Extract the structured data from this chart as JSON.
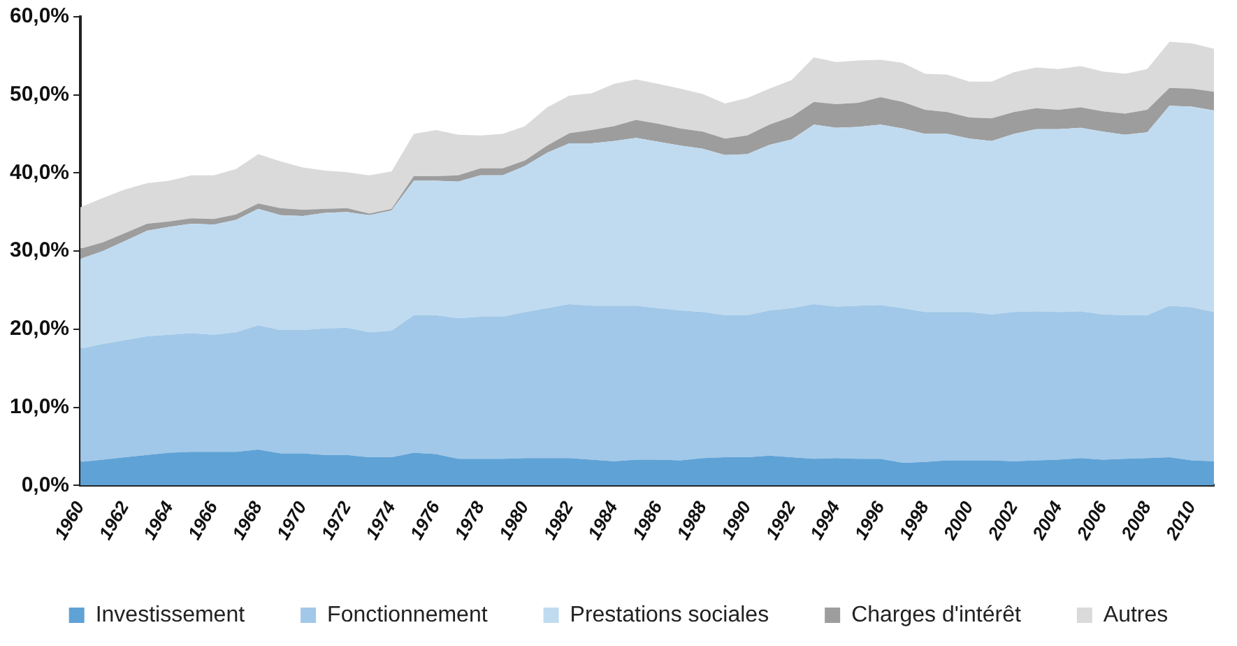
{
  "chart_data": {
    "type": "area",
    "stacked": true,
    "legend": "bottom",
    "grid": false,
    "categories": [
      "1960",
      null,
      "1962",
      null,
      "1964",
      null,
      "1966",
      null,
      "1968",
      null,
      "1970",
      null,
      "1972",
      null,
      "1974",
      null,
      "1976",
      null,
      "1978",
      null,
      "1980",
      null,
      "1982",
      null,
      "1984",
      null,
      "1986",
      null,
      "1988",
      null,
      "1990",
      null,
      "1992",
      null,
      "1994",
      null,
      "1996",
      null,
      "1998",
      null,
      "2000",
      null,
      "2002",
      null,
      "2004",
      null,
      "2006",
      null,
      "2008",
      null,
      "2010",
      null
    ],
    "ylim": [
      0,
      60
    ],
    "yticks": [
      {
        "value": 0,
        "label": "0,0%"
      },
      {
        "value": 10,
        "label": "10,0%"
      },
      {
        "value": 20,
        "label": "20,0%"
      },
      {
        "value": 30,
        "label": "30,0%"
      },
      {
        "value": 40,
        "label": "40,0%"
      },
      {
        "value": 50,
        "label": "50,0%"
      },
      {
        "value": 60,
        "label": "60,0%"
      }
    ],
    "series": [
      {
        "name": "Investissement",
        "color": "#5fa2d6",
        "values": [
          3.0,
          3.3,
          3.6,
          3.9,
          4.2,
          4.3,
          4.3,
          4.3,
          4.6,
          4.1,
          4.1,
          3.9,
          3.9,
          3.6,
          3.6,
          4.2,
          4.0,
          3.4,
          3.4,
          3.4,
          3.5,
          3.5,
          3.5,
          3.3,
          3.1,
          3.3,
          3.3,
          3.2,
          3.5,
          3.6,
          3.6,
          3.8,
          3.6,
          3.4,
          3.5,
          3.4,
          3.4,
          2.9,
          3.0,
          3.2,
          3.2,
          3.2,
          3.1,
          3.2,
          3.3,
          3.5,
          3.3,
          3.4,
          3.5,
          3.6,
          3.2,
          3.1
        ]
      },
      {
        "name": "Fonctionnement",
        "color": "#a1c8e8",
        "values": [
          14.5,
          14.8,
          15.0,
          15.2,
          15.1,
          15.2,
          15.0,
          15.3,
          15.9,
          15.8,
          15.8,
          16.2,
          16.3,
          16.0,
          16.2,
          17.6,
          17.8,
          18.0,
          18.2,
          18.2,
          18.7,
          19.2,
          19.7,
          19.7,
          19.9,
          19.7,
          19.4,
          19.2,
          18.7,
          18.2,
          18.2,
          18.6,
          19.1,
          19.8,
          19.4,
          19.6,
          19.7,
          19.8,
          19.2,
          19.0,
          19.0,
          18.7,
          19.1,
          19.1,
          18.9,
          18.8,
          18.6,
          18.4,
          18.3,
          19.4,
          19.6,
          19.1
        ]
      },
      {
        "name": "Prestations sociales",
        "color": "#c0dbf0",
        "values": [
          11.5,
          11.9,
          12.7,
          13.5,
          13.8,
          14.0,
          14.1,
          14.4,
          14.9,
          14.7,
          14.6,
          14.8,
          14.8,
          15.0,
          15.4,
          17.2,
          17.2,
          17.5,
          18.1,
          18.1,
          18.7,
          19.9,
          20.6,
          20.8,
          21.1,
          21.5,
          21.3,
          21.1,
          20.9,
          20.5,
          20.6,
          21.2,
          21.6,
          23.0,
          22.9,
          22.9,
          23.1,
          23.0,
          22.8,
          22.8,
          22.2,
          22.2,
          22.8,
          23.3,
          23.4,
          23.5,
          23.4,
          23.1,
          23.4,
          25.6,
          25.7,
          25.8
        ]
      },
      {
        "name": "Charges d'intérêt",
        "color": "#9d9d9d",
        "values": [
          1.3,
          1.1,
          1.0,
          0.9,
          0.7,
          0.7,
          0.7,
          0.7,
          0.7,
          0.9,
          0.8,
          0.5,
          0.5,
          0.2,
          0.2,
          0.6,
          0.6,
          0.8,
          0.9,
          0.9,
          0.7,
          0.9,
          1.3,
          1.7,
          1.9,
          2.3,
          2.3,
          2.2,
          2.2,
          2.1,
          2.4,
          2.6,
          2.9,
          2.9,
          3.0,
          3.1,
          3.5,
          3.4,
          3.1,
          2.8,
          2.7,
          2.9,
          2.8,
          2.7,
          2.5,
          2.6,
          2.6,
          2.7,
          2.9,
          2.3,
          2.3,
          2.4
        ]
      },
      {
        "name": "Autres",
        "color": "#dadada",
        "values": [
          5.3,
          5.7,
          5.6,
          5.2,
          5.2,
          5.5,
          5.6,
          5.8,
          6.3,
          6.0,
          5.4,
          4.9,
          4.6,
          4.9,
          4.8,
          5.4,
          5.9,
          5.2,
          4.2,
          4.4,
          4.4,
          4.9,
          4.8,
          4.7,
          5.4,
          5.2,
          5.1,
          5.1,
          4.8,
          4.5,
          4.8,
          4.6,
          4.7,
          5.7,
          5.4,
          5.4,
          4.8,
          5.0,
          4.6,
          4.8,
          4.6,
          4.7,
          5.1,
          5.2,
          5.2,
          5.3,
          5.1,
          5.1,
          5.2,
          5.9,
          5.8,
          5.5
        ]
      }
    ]
  }
}
